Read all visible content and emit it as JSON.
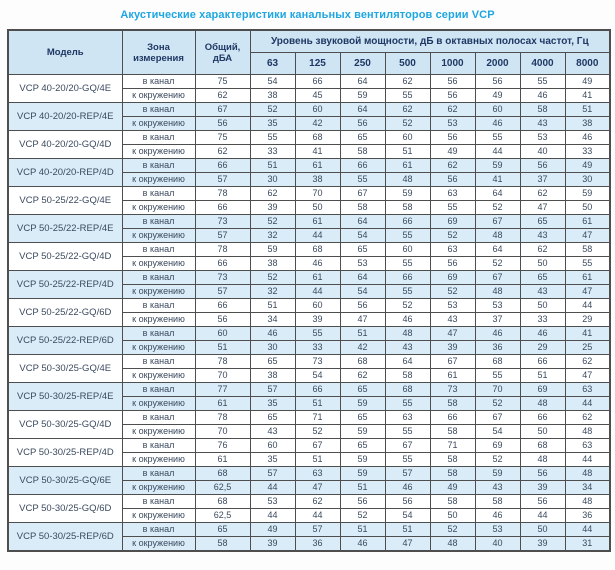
{
  "title": "Акустические характеристики канальных вентиляторов  серии VCP",
  "table": {
    "headers": {
      "model": "Модель",
      "zone": "Зона измерения",
      "total": "Общий, дБА",
      "band_group": "Уровень звуковой мощности, дБ в октавных полосах частот, Гц"
    },
    "frequencies": [
      "63",
      "125",
      "250",
      "500",
      "1000",
      "2000",
      "4000",
      "8000"
    ],
    "zone_labels": [
      "в канал",
      "к окружению"
    ],
    "rows": [
      {
        "model": "VCP 40-20/20-GQ/4E",
        "shaded": false,
        "in": [
          "75",
          "54",
          "66",
          "64",
          "62",
          "56",
          "56",
          "55",
          "49"
        ],
        "out": [
          "62",
          "38",
          "45",
          "59",
          "55",
          "56",
          "49",
          "46",
          "41"
        ]
      },
      {
        "model": "VCP 40-20/20-REP/4E",
        "shaded": true,
        "in": [
          "67",
          "52",
          "60",
          "64",
          "62",
          "62",
          "60",
          "58",
          "51"
        ],
        "out": [
          "56",
          "35",
          "42",
          "56",
          "52",
          "53",
          "46",
          "43",
          "38"
        ]
      },
      {
        "model": "VCP 40-20/20-GQ/4D",
        "shaded": false,
        "in": [
          "75",
          "55",
          "68",
          "65",
          "60",
          "56",
          "55",
          "53",
          "46"
        ],
        "out": [
          "62",
          "33",
          "41",
          "58",
          "51",
          "49",
          "44",
          "40",
          "33"
        ]
      },
      {
        "model": "VCP 40-20/20-REP/4D",
        "shaded": true,
        "in": [
          "66",
          "51",
          "61",
          "66",
          "61",
          "62",
          "59",
          "56",
          "49"
        ],
        "out": [
          "57",
          "30",
          "38",
          "55",
          "48",
          "56",
          "41",
          "37",
          "30"
        ]
      },
      {
        "model": "VCP 50-25/22-GQ/4E",
        "shaded": false,
        "in": [
          "78",
          "62",
          "70",
          "67",
          "59",
          "63",
          "64",
          "62",
          "59"
        ],
        "out": [
          "66",
          "39",
          "50",
          "58",
          "58",
          "55",
          "52",
          "47",
          "50"
        ]
      },
      {
        "model": "VCP 50-25/22-REP/4E",
        "shaded": true,
        "in": [
          "73",
          "52",
          "61",
          "64",
          "66",
          "69",
          "67",
          "65",
          "61"
        ],
        "out": [
          "57",
          "32",
          "44",
          "54",
          "55",
          "52",
          "48",
          "43",
          "47"
        ]
      },
      {
        "model": "VCP 50-25/22-GQ/4D",
        "shaded": false,
        "in": [
          "78",
          "59",
          "68",
          "65",
          "60",
          "63",
          "64",
          "62",
          "58"
        ],
        "out": [
          "66",
          "38",
          "46",
          "53",
          "55",
          "56",
          "52",
          "50",
          "55"
        ]
      },
      {
        "model": "VCP 50-25/22-REP/4D",
        "shaded": true,
        "in": [
          "73",
          "52",
          "61",
          "64",
          "66",
          "69",
          "67",
          "65",
          "61"
        ],
        "out": [
          "57",
          "32",
          "44",
          "54",
          "55",
          "52",
          "48",
          "43",
          "47"
        ]
      },
      {
        "model": "VCP 50-25/22-GQ/6D",
        "shaded": false,
        "in": [
          "66",
          "51",
          "60",
          "56",
          "52",
          "53",
          "53",
          "50",
          "44"
        ],
        "out": [
          "56",
          "34",
          "39",
          "47",
          "46",
          "43",
          "37",
          "33",
          "29"
        ]
      },
      {
        "model": "VCP 50-25/22-REP/6D",
        "shaded": true,
        "in": [
          "60",
          "46",
          "55",
          "51",
          "48",
          "47",
          "46",
          "46",
          "41"
        ],
        "out": [
          "51",
          "30",
          "33",
          "42",
          "43",
          "39",
          "36",
          "29",
          "25"
        ]
      },
      {
        "model": "VCP 50-30/25-GQ/4E",
        "shaded": false,
        "in": [
          "78",
          "65",
          "73",
          "68",
          "64",
          "67",
          "68",
          "66",
          "62"
        ],
        "out": [
          "70",
          "38",
          "54",
          "62",
          "58",
          "61",
          "55",
          "51",
          "47"
        ]
      },
      {
        "model": "VCP 50-30/25-REP/4E",
        "shaded": true,
        "in": [
          "77",
          "57",
          "66",
          "65",
          "68",
          "73",
          "70",
          "69",
          "63"
        ],
        "out": [
          "61",
          "35",
          "51",
          "59",
          "55",
          "58",
          "52",
          "48",
          "44"
        ]
      },
      {
        "model": "VCP 50-30/25-GQ/4D",
        "shaded": false,
        "in": [
          "78",
          "65",
          "71",
          "65",
          "63",
          "66",
          "67",
          "66",
          "62"
        ],
        "out": [
          "70",
          "43",
          "52",
          "59",
          "55",
          "58",
          "54",
          "50",
          "48"
        ]
      },
      {
        "model": "VCP 50-30/25-REP/4D",
        "shaded": false,
        "in": [
          "76",
          "60",
          "67",
          "65",
          "67",
          "71",
          "69",
          "68",
          "63"
        ],
        "out": [
          "61",
          "35",
          "51",
          "59",
          "55",
          "58",
          "52",
          "48",
          "44"
        ]
      },
      {
        "model": "VCP 50-30/25-GQ/6E",
        "shaded": true,
        "in": [
          "68",
          "57",
          "63",
          "59",
          "57",
          "58",
          "59",
          "56",
          "48"
        ],
        "out": [
          "62,5",
          "44",
          "47",
          "51",
          "46",
          "49",
          "43",
          "39",
          "34"
        ]
      },
      {
        "model": "VCP 50-30/25-GQ/6D",
        "shaded": false,
        "in": [
          "68",
          "53",
          "62",
          "56",
          "56",
          "58",
          "58",
          "56",
          "48"
        ],
        "out": [
          "62,5",
          "44",
          "44",
          "52",
          "54",
          "50",
          "46",
          "44",
          "36"
        ]
      },
      {
        "model": "VCP 50-30/25-REP/6D",
        "shaded": true,
        "in": [
          "65",
          "49",
          "57",
          "51",
          "51",
          "52",
          "53",
          "50",
          "44"
        ],
        "out": [
          "58",
          "39",
          "36",
          "46",
          "47",
          "48",
          "40",
          "39",
          "31"
        ]
      }
    ]
  },
  "colors": {
    "title_text": "#1ea7e1",
    "header_bg": "#cfe5f3",
    "shaded_row_bg": "#d9ecf8",
    "border": "#4e4e4e",
    "header_text": "#1f3864",
    "cell_text": "#3b4a5e"
  }
}
